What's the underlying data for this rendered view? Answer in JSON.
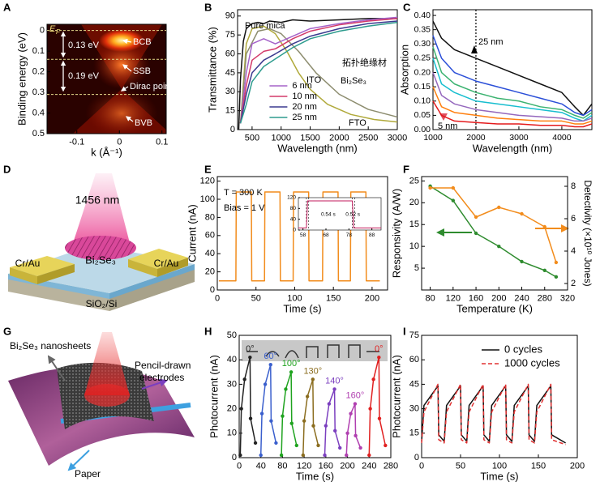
{
  "chart_data": [
    {
      "type": "image",
      "panel": "A",
      "xlabel": "k (Å⁻¹)",
      "ylabel": "Binding energy (eV)",
      "xlim": [
        -0.17,
        0.11
      ],
      "ylim": [
        0.5,
        -0.03
      ],
      "xticks": [
        -0.1,
        0,
        0.1
      ],
      "yticks": [
        0,
        0.1,
        0.2,
        0.3,
        0.4,
        0.5
      ],
      "hlines": [
        0,
        0.14,
        0.31
      ],
      "hline_color": "#e6d98a",
      "annotation_color": "#ffffff",
      "annotations": [
        "0.13 eV",
        "0.19 eV",
        "BCB",
        "SSB",
        "Dirac point",
        "BVB"
      ],
      "fermi_label": {
        "text": "E",
        "sub": "F"
      },
      "series": []
    },
    {
      "type": "line",
      "panel": "B",
      "xlabel": "Wavelength (nm)",
      "ylabel": "Transmittance (%)",
      "xlim": [
        250,
        3000
      ],
      "ylim": [
        0,
        95
      ],
      "xticks": [
        500,
        1000,
        1500,
        2000,
        2500,
        3000
      ],
      "yticks": [
        0,
        15,
        30,
        45,
        60,
        75,
        90
      ],
      "legend": "lower center",
      "annotations": [
        "Pure mica",
        "ITO",
        "Bi₂Se₃",
        "FTO",
        "拓扑绝缘材"
      ],
      "series": [
        {
          "color": "#111111",
          "x": [
            270,
            300,
            350,
            400,
            500,
            600,
            700,
            800,
            1000,
            1200,
            1500,
            2000,
            2500,
            3000
          ],
          "values": [
            0,
            40,
            70,
            80,
            84,
            85,
            84,
            86,
            85,
            87,
            86,
            87,
            88,
            88
          ]
        },
        {
          "color": "#b0a93a",
          "x": [
            300,
            400,
            500,
            700,
            900,
            1100,
            1300,
            1500,
            1800,
            2200,
            2600,
            3000
          ],
          "values": [
            5,
            68,
            80,
            82,
            76,
            62,
            45,
            32,
            20,
            12,
            8,
            6
          ]
        },
        {
          "color": "#8c8c6e",
          "x": [
            300,
            400,
            600,
            800,
            1000,
            1300,
            1600,
            2000,
            2500,
            3000
          ],
          "values": [
            5,
            60,
            78,
            80,
            76,
            62,
            45,
            28,
            16,
            10
          ]
        },
        {
          "name": "6 nm",
          "color": "#a563c9",
          "x": [
            300,
            400,
            500,
            700,
            900,
            1200,
            1500,
            2000,
            2500,
            3000
          ],
          "values": [
            5,
            45,
            68,
            72,
            68,
            74,
            80,
            84,
            87,
            89
          ]
        },
        {
          "name": "10 nm",
          "color": "#d33a6a",
          "x": [
            300,
            400,
            500,
            700,
            900,
            1200,
            1500,
            2000,
            2500,
            3000
          ],
          "values": [
            5,
            35,
            55,
            62,
            64,
            72,
            78,
            83,
            86,
            88
          ]
        },
        {
          "name": "20 nm",
          "color": "#3b3a8f",
          "x": [
            300,
            400,
            500,
            700,
            900,
            1200,
            1500,
            2000,
            2500,
            3000
          ],
          "values": [
            5,
            28,
            45,
            55,
            60,
            68,
            74,
            80,
            84,
            86
          ]
        },
        {
          "name": "25 nm",
          "color": "#2e9c8e",
          "x": [
            300,
            400,
            500,
            700,
            900,
            1200,
            1500,
            2000,
            2500,
            3000
          ],
          "values": [
            5,
            20,
            38,
            50,
            56,
            65,
            72,
            78,
            82,
            85
          ]
        }
      ]
    },
    {
      "type": "line",
      "panel": "C",
      "xlabel": "Wavelength (nm)",
      "ylabel": "Absorption",
      "xlim": [
        1000,
        4700
      ],
      "ylim": [
        0,
        0.42
      ],
      "xticks": [
        1000,
        2000,
        3000,
        4000
      ],
      "yticks": [
        {
          "value": 0,
          "label": "0.00"
        },
        {
          "value": 0.05,
          "label": "0.05"
        },
        {
          "value": 0.1,
          "label": "0.10"
        },
        {
          "value": 0.15,
          "label": "0.15"
        },
        {
          "value": 0.2,
          "label": "0.20"
        },
        {
          "value": 0.25,
          "label": "0.25"
        },
        {
          "value": 0.3,
          "label": "0.30"
        },
        {
          "value": 0.35,
          "label": "0.35"
        },
        {
          "value": 0.4,
          "label": "0.40"
        }
      ],
      "vlines": [
        2000
      ],
      "annotations": [
        "25 nm",
        "5 nm"
      ],
      "x": [
        1000,
        1200,
        1500,
        2000,
        2500,
        3000,
        3500,
        4000,
        4300,
        4500,
        4700
      ],
      "series": [
        {
          "color": "#111111",
          "values": [
            0.38,
            0.32,
            0.28,
            0.25,
            0.22,
            0.19,
            0.16,
            0.13,
            0.08,
            0.05,
            0.09
          ]
        },
        {
          "color": "#2b4fd8",
          "values": [
            0.33,
            0.25,
            0.2,
            0.17,
            0.15,
            0.13,
            0.11,
            0.09,
            0.06,
            0.05,
            0.07
          ]
        },
        {
          "color": "#3cb371",
          "values": [
            0.29,
            0.2,
            0.16,
            0.13,
            0.11,
            0.1,
            0.08,
            0.07,
            0.05,
            0.04,
            0.06
          ]
        },
        {
          "color": "#17becf",
          "values": [
            0.25,
            0.16,
            0.13,
            0.1,
            0.09,
            0.08,
            0.07,
            0.06,
            0.04,
            0.03,
            0.05
          ]
        },
        {
          "color": "#9467bd",
          "values": [
            0.2,
            0.12,
            0.09,
            0.07,
            0.06,
            0.05,
            0.045,
            0.04,
            0.03,
            0.03,
            0.04
          ]
        },
        {
          "color": "#ff7f0e",
          "values": [
            0.15,
            0.08,
            0.06,
            0.05,
            0.04,
            0.035,
            0.03,
            0.03,
            0.02,
            0.02,
            0.03
          ]
        },
        {
          "color": "#e41a1c",
          "values": [
            0.1,
            0.05,
            0.03,
            0.025,
            0.02,
            0.02,
            0.015,
            0.015,
            0.01,
            0.01,
            0.02
          ]
        }
      ]
    },
    {
      "type": "line",
      "panel": "E",
      "xlabel": "Time (s)",
      "ylabel": "Current (nA)",
      "xlim": [
        0,
        220
      ],
      "ylim": [
        0,
        125
      ],
      "xticks": [
        0,
        50,
        100,
        150,
        200
      ],
      "yticks": [
        0,
        20,
        40,
        60,
        80,
        100,
        120
      ],
      "annotations": [
        "T = 300 K",
        "Bias = 1 V"
      ],
      "series": [
        {
          "color": "#f28c1c",
          "x": [
            2,
            24,
            24.5,
            44,
            44.5,
            61,
            61.5,
            81,
            81.5,
            98,
            98.5,
            118,
            118.5,
            136,
            136.5,
            156,
            156.5,
            172,
            172.5,
            192,
            192.5,
            210
          ],
          "values": [
            10,
            10,
            108,
            108,
            10,
            10,
            108,
            108,
            10,
            10,
            108,
            108,
            10,
            10,
            108,
            108,
            10,
            10,
            108,
            108,
            10,
            10
          ]
        }
      ]
    },
    {
      "type": "line",
      "xlim": [
        56,
        92
      ],
      "ylim": [
        0,
        120
      ],
      "xticks": [
        58,
        68,
        78,
        88
      ],
      "yticks": [
        0,
        40,
        80,
        120
      ],
      "vlines": [
        59.5,
        60.5,
        79.5,
        80.5
      ],
      "annotations": [
        "0.54 s",
        "0.52 s"
      ],
      "series": [
        {
          "color": "#c2185b",
          "x": [
            56,
            59.5,
            60,
            79.5,
            80,
            92
          ],
          "values": [
            8,
            8,
            108,
            108,
            8,
            8
          ]
        }
      ]
    },
    {
      "type": "line",
      "panel": "F",
      "xlabel": "Temperature (K)",
      "ylabel": "Responsivity (A/W)",
      "y2label": "Detectivity (×10¹⁰ Jones)",
      "xlim": [
        65,
        320
      ],
      "ylim": [
        0,
        26
      ],
      "y2lim": [
        1.6,
        8.6
      ],
      "xticks": [
        80,
        120,
        160,
        200,
        240,
        280,
        320
      ],
      "yticks": [
        5,
        10,
        15,
        20,
        25
      ],
      "y2ticks": [
        2,
        4,
        6,
        8
      ],
      "markers": true,
      "series": [
        {
          "color": "#2e8b2e",
          "x": [
            80,
            120,
            160,
            200,
            240,
            280,
            300
          ],
          "values": [
            23.8,
            20.5,
            13,
            10,
            6.5,
            4.5,
            3.0
          ]
        },
        {
          "color": "#f28c1c",
          "axis": "y2",
          "x": [
            80,
            120,
            160,
            200,
            240,
            280,
            300
          ],
          "values": [
            7.9,
            7.9,
            6.1,
            6.7,
            6.3,
            5.5,
            3.3
          ]
        }
      ]
    },
    {
      "type": "line",
      "panel": "H",
      "xlabel": "Time (s)",
      "ylabel": "Photocurrent (nA)",
      "xlim": [
        0,
        280
      ],
      "ylim": [
        0,
        50
      ],
      "xticks": [
        0,
        40,
        80,
        120,
        160,
        200,
        240,
        280
      ],
      "yticks": [
        0,
        10,
        20,
        30,
        40,
        50
      ],
      "markers": true,
      "label_series": true,
      "series": [
        {
          "name": "0°",
          "color": "#222222",
          "x": [
            2,
            4,
            10,
            20,
            21,
            30
          ],
          "values": [
            1,
            20,
            32,
            41,
            16,
            6
          ]
        },
        {
          "name": "60°",
          "color": "#3a5fcd",
          "x": [
            40,
            42,
            48,
            58,
            59,
            68
          ],
          "values": [
            1,
            18,
            30,
            38,
            15,
            6
          ]
        },
        {
          "name": "100°",
          "color": "#1fa31f",
          "x": [
            78,
            80,
            86,
            96,
            97,
            106
          ],
          "values": [
            1,
            17,
            28,
            35,
            14,
            5
          ]
        },
        {
          "name": "130°",
          "color": "#8b6d1f",
          "x": [
            118,
            120,
            126,
            136,
            137,
            146
          ],
          "values": [
            1,
            15,
            25,
            32,
            13,
            5
          ]
        },
        {
          "name": "140°",
          "color": "#7b3fbf",
          "x": [
            158,
            160,
            166,
            176,
            177,
            186
          ],
          "values": [
            1,
            13,
            22,
            28,
            11,
            4
          ]
        },
        {
          "name": "160°",
          "color": "#b03fb0",
          "x": [
            198,
            200,
            206,
            214,
            215,
            224
          ],
          "values": [
            1,
            10,
            18,
            22,
            9,
            4
          ]
        },
        {
          "name": "0°",
          "color": "#e02020",
          "x": [
            240,
            242,
            248,
            258,
            259,
            270
          ],
          "values": [
            1,
            20,
            32,
            41,
            16,
            5
          ]
        }
      ]
    },
    {
      "type": "line",
      "panel": "I",
      "xlabel": "Time (s)",
      "ylabel": "Photocurrent (nA)",
      "xlim": [
        0,
        200
      ],
      "ylim": [
        0,
        75
      ],
      "xticks": [
        0,
        50,
        100,
        150,
        200
      ],
      "yticks": [
        0,
        15,
        30,
        45,
        60,
        75
      ],
      "legend": "upper right",
      "x": [
        0,
        3,
        21,
        22,
        29,
        32,
        50,
        51,
        58,
        61,
        79,
        80,
        87,
        90,
        108,
        109,
        116,
        119,
        137,
        138,
        145,
        148,
        166,
        167,
        185
      ],
      "series": [
        {
          "name": "0 cycles",
          "color": "#111111",
          "values": [
            10,
            32,
            44,
            14,
            10,
            32,
            44,
            14,
            10,
            32,
            44,
            14,
            10,
            32,
            44,
            14,
            10,
            32,
            44,
            14,
            10,
            32,
            44,
            14,
            9
          ]
        },
        {
          "name": "1000 cycles",
          "color": "#e03030",
          "dash": true,
          "values": [
            9,
            28,
            45,
            11,
            9,
            28,
            45,
            11,
            9,
            28,
            45,
            11,
            9,
            28,
            45,
            11,
            9,
            28,
            45,
            11,
            9,
            28,
            45,
            11,
            8
          ]
        }
      ]
    }
  ],
  "schematics": [
    {
      "panel": "D",
      "labels": [
        "1456 nm",
        "Cr/Au",
        "Bi₂Se₃",
        "Cr/Au",
        "SiO₂/Si"
      ]
    },
    {
      "panel": "G",
      "labels": [
        "Bi₂Se₃ nanosheets",
        "Pencil-drawn",
        "electrodes",
        "Paper"
      ]
    }
  ]
}
